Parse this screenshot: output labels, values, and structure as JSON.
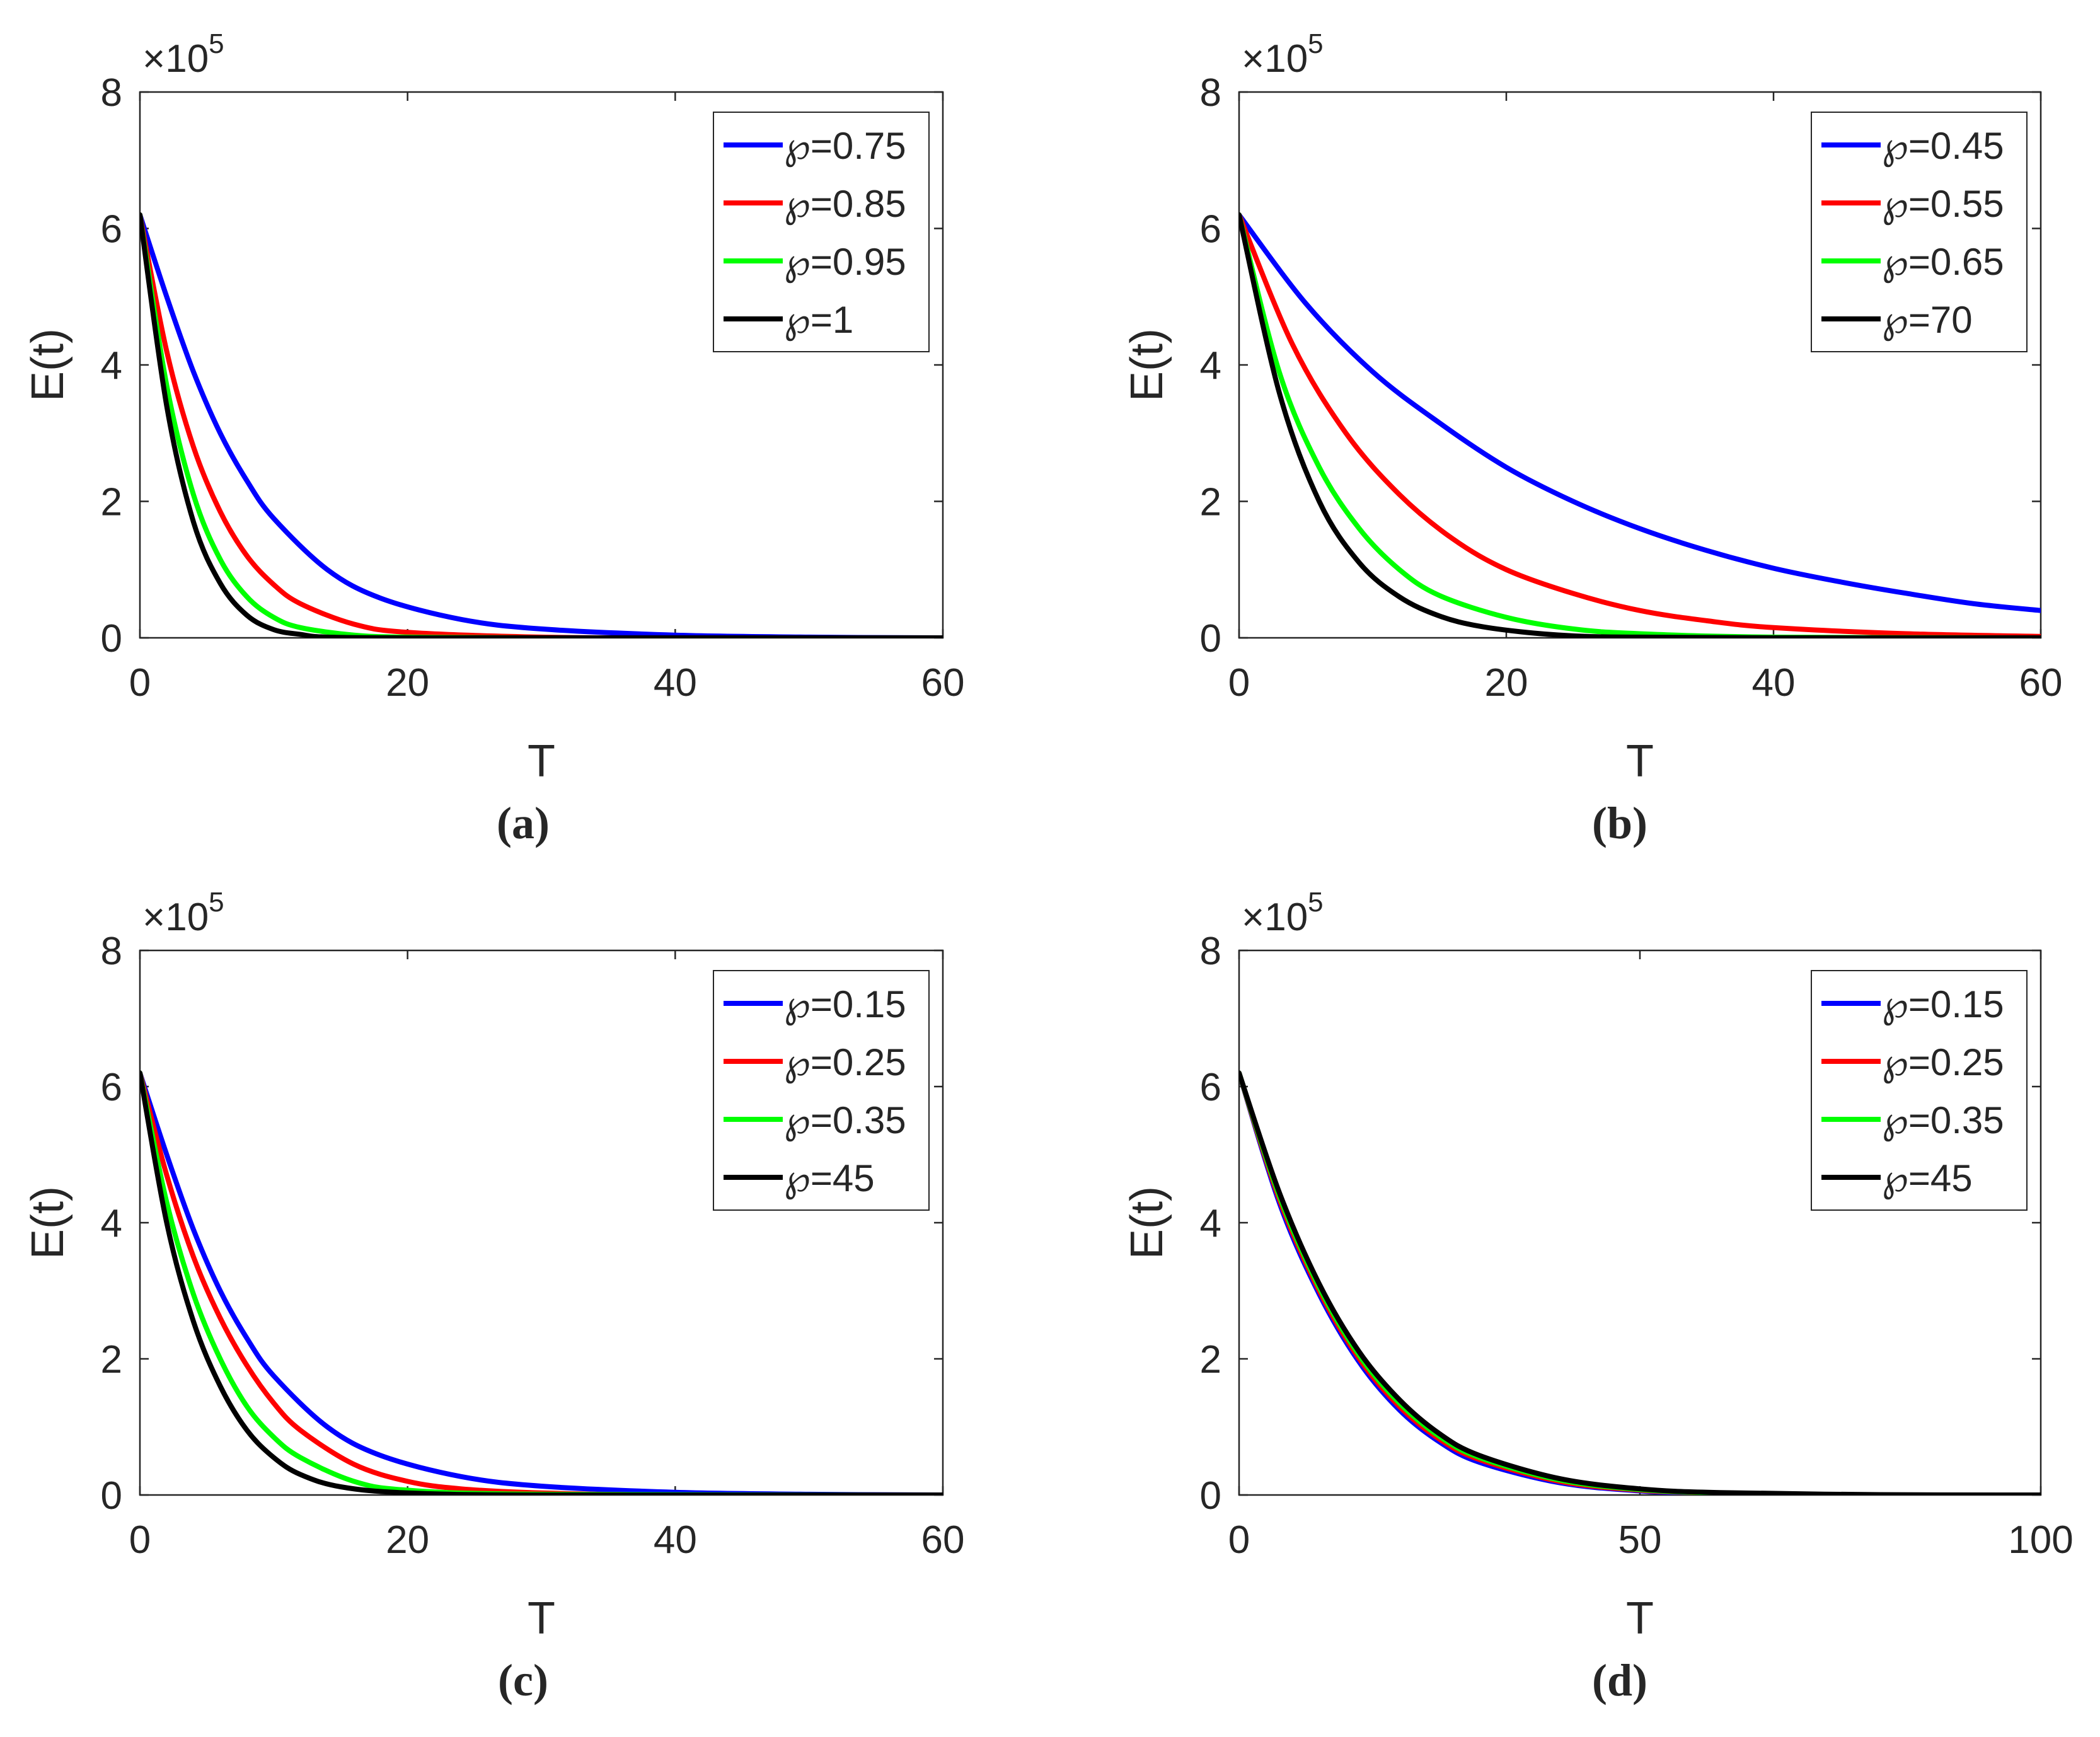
{
  "chart_data": [
    {
      "type": "line",
      "panel_label": "(a)",
      "xlabel": "T",
      "ylabel": "E(t)",
      "y_multiplier": "×10",
      "y_exponent": "5",
      "xlim": [
        0,
        60
      ],
      "ylim": [
        0,
        8
      ],
      "xticks": [
        0,
        20,
        40,
        60
      ],
      "yticks": [
        0,
        2,
        4,
        6,
        8
      ],
      "legend_position": "top-right",
      "legend_symbol": "℘",
      "series": [
        {
          "name": "℘=0.75",
          "color": "#0000ff",
          "x": [
            0,
            2,
            4,
            6,
            8,
            10,
            14,
            18,
            24,
            30,
            40,
            50,
            60
          ],
          "values": [
            6.2,
            5.0,
            3.9,
            3.0,
            2.3,
            1.75,
            1.0,
            0.58,
            0.27,
            0.13,
            0.04,
            0.01,
            0.0
          ]
        },
        {
          "name": "℘=0.85",
          "color": "#ff0000",
          "x": [
            0,
            2,
            4,
            6,
            8,
            10,
            12,
            16,
            20,
            30,
            40,
            60
          ],
          "values": [
            6.2,
            4.2,
            2.8,
            1.85,
            1.2,
            0.78,
            0.5,
            0.2,
            0.08,
            0.01,
            0.0,
            0.0
          ]
        },
        {
          "name": "℘=0.95",
          "color": "#00ff00",
          "x": [
            0,
            2,
            4,
            6,
            8,
            10,
            12,
            16,
            20,
            30,
            60
          ],
          "values": [
            6.2,
            3.7,
            2.1,
            1.15,
            0.6,
            0.3,
            0.15,
            0.04,
            0.01,
            0.0,
            0.0
          ]
        },
        {
          "name": "℘=1",
          "color": "#000000",
          "x": [
            0,
            2,
            4,
            6,
            8,
            10,
            12,
            14,
            20,
            30,
            60
          ],
          "values": [
            6.2,
            3.4,
            1.7,
            0.8,
            0.33,
            0.12,
            0.05,
            0.01,
            0.0,
            0.0,
            0.0
          ]
        }
      ]
    },
    {
      "type": "line",
      "panel_label": "(b)",
      "xlabel": "T",
      "ylabel": "E(t)",
      "y_multiplier": "×10",
      "y_exponent": "5",
      "xlim": [
        0,
        60
      ],
      "ylim": [
        0,
        8
      ],
      "xticks": [
        0,
        20,
        40,
        60
      ],
      "yticks": [
        0,
        2,
        4,
        6,
        8
      ],
      "legend_position": "top-right",
      "legend_symbol": "℘",
      "series": [
        {
          "name": "℘=0.45",
          "color": "#0000ff",
          "x": [
            0,
            5,
            10,
            15,
            20,
            25,
            30,
            35,
            40,
            45,
            50,
            55,
            60
          ],
          "values": [
            6.2,
            4.9,
            3.9,
            3.15,
            2.5,
            2.0,
            1.6,
            1.28,
            1.02,
            0.82,
            0.65,
            0.5,
            0.4
          ]
        },
        {
          "name": "℘=0.55",
          "color": "#ff0000",
          "x": [
            0,
            4,
            8,
            12,
            16,
            20,
            25,
            30,
            35,
            40,
            50,
            60
          ],
          "values": [
            6.2,
            4.3,
            3.0,
            2.1,
            1.45,
            1.0,
            0.65,
            0.4,
            0.25,
            0.15,
            0.06,
            0.02
          ]
        },
        {
          "name": "℘=0.65",
          "color": "#00ff00",
          "x": [
            0,
            3,
            6,
            9,
            12,
            15,
            20,
            25,
            30,
            40,
            60
          ],
          "values": [
            6.2,
            3.9,
            2.5,
            1.6,
            1.0,
            0.62,
            0.3,
            0.13,
            0.06,
            0.01,
            0.0
          ]
        },
        {
          "name": "℘=70",
          "color": "#000000",
          "x": [
            0,
            3,
            6,
            9,
            12,
            15,
            18,
            22,
            26,
            30,
            40,
            60
          ],
          "values": [
            6.2,
            3.6,
            2.0,
            1.1,
            0.6,
            0.32,
            0.17,
            0.07,
            0.02,
            0.01,
            0.0,
            0.0
          ]
        }
      ]
    },
    {
      "type": "line",
      "panel_label": "(c)",
      "xlabel": "T",
      "ylabel": "E(t)",
      "y_multiplier": "×10",
      "y_exponent": "5",
      "xlim": [
        0,
        60
      ],
      "ylim": [
        0,
        8
      ],
      "xticks": [
        0,
        20,
        40,
        60
      ],
      "yticks": [
        0,
        2,
        4,
        6,
        8
      ],
      "legend_position": "top-right",
      "legend_symbol": "℘",
      "series": [
        {
          "name": "℘=0.15",
          "color": "#0000ff",
          "x": [
            0,
            2,
            4,
            6,
            8,
            10,
            14,
            18,
            24,
            30,
            40,
            50,
            60
          ],
          "values": [
            6.2,
            5.0,
            3.9,
            3.0,
            2.3,
            1.75,
            1.0,
            0.58,
            0.27,
            0.13,
            0.04,
            0.01,
            0.0
          ]
        },
        {
          "name": "℘=0.25",
          "color": "#ff0000",
          "x": [
            0,
            2,
            4,
            6,
            8,
            10,
            12,
            16,
            20,
            24,
            30,
            40,
            60
          ],
          "values": [
            6.2,
            4.7,
            3.5,
            2.6,
            1.9,
            1.35,
            0.95,
            0.45,
            0.2,
            0.09,
            0.03,
            0.0,
            0.0
          ]
        },
        {
          "name": "℘=0.35",
          "color": "#00ff00",
          "x": [
            0,
            2,
            4,
            6,
            8,
            10,
            12,
            16,
            20,
            30,
            60
          ],
          "values": [
            6.2,
            4.3,
            2.95,
            2.0,
            1.3,
            0.85,
            0.55,
            0.2,
            0.07,
            0.01,
            0.0
          ]
        },
        {
          "name": "℘=45",
          "color": "#000000",
          "x": [
            0,
            2,
            4,
            6,
            8,
            10,
            12,
            15,
            20,
            30,
            60
          ],
          "values": [
            6.2,
            4.0,
            2.55,
            1.6,
            0.95,
            0.55,
            0.3,
            0.12,
            0.03,
            0.0,
            0.0
          ]
        }
      ]
    },
    {
      "type": "line",
      "panel_label": "(d)",
      "xlabel": "T",
      "ylabel": "E(t)",
      "y_multiplier": "×10",
      "y_exponent": "5",
      "xlim": [
        0,
        100
      ],
      "ylim": [
        0,
        8
      ],
      "xticks": [
        0,
        50,
        100
      ],
      "yticks": [
        0,
        2,
        4,
        6,
        8
      ],
      "legend_position": "top-right",
      "legend_symbol": "℘",
      "series": [
        {
          "name": "℘=0.15",
          "color": "#0000ff",
          "x": [
            0,
            5,
            10,
            15,
            20,
            25,
            30,
            40,
            50,
            60,
            80,
            100
          ],
          "values": [
            6.2,
            4.3,
            2.95,
            1.95,
            1.25,
            0.78,
            0.48,
            0.18,
            0.06,
            0.02,
            0.0,
            0.0
          ]
        },
        {
          "name": "℘=0.25",
          "color": "#ff0000",
          "x": [
            0,
            5,
            10,
            15,
            20,
            25,
            30,
            40,
            50,
            60,
            80,
            100
          ],
          "values": [
            6.2,
            4.35,
            3.0,
            2.0,
            1.3,
            0.82,
            0.52,
            0.2,
            0.07,
            0.03,
            0.0,
            0.0
          ]
        },
        {
          "name": "℘=0.35",
          "color": "#00ff00",
          "x": [
            0,
            5,
            10,
            15,
            20,
            25,
            30,
            40,
            50,
            60,
            80,
            100
          ],
          "values": [
            6.2,
            4.4,
            3.05,
            2.05,
            1.35,
            0.86,
            0.55,
            0.22,
            0.08,
            0.03,
            0.0,
            0.0
          ]
        },
        {
          "name": "℘=45",
          "color": "#000000",
          "x": [
            0,
            5,
            10,
            15,
            20,
            25,
            30,
            40,
            50,
            60,
            80,
            100
          ],
          "values": [
            6.2,
            4.45,
            3.1,
            2.1,
            1.4,
            0.9,
            0.58,
            0.24,
            0.09,
            0.035,
            0.005,
            0.0
          ]
        }
      ]
    }
  ]
}
